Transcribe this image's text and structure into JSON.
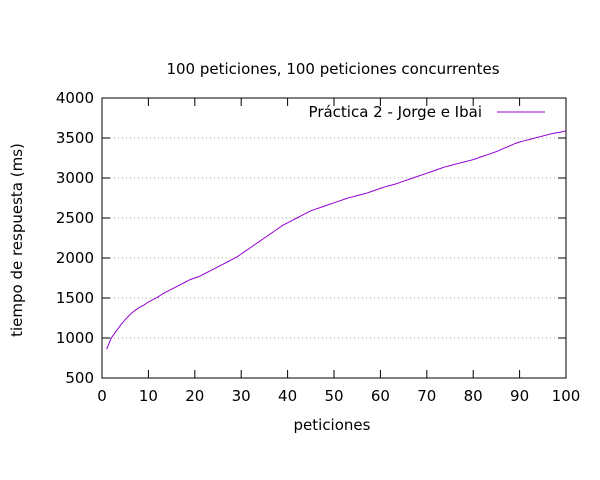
{
  "chart_data": {
    "type": "line",
    "title": "100 peticiones, 100 peticiones concurrentes",
    "xlabel": "peticiones",
    "ylabel": "tiempo de respuesta (ms)",
    "xlim": [
      0,
      100
    ],
    "ylim": [
      500,
      4000
    ],
    "xticks": [
      0,
      10,
      20,
      30,
      40,
      50,
      60,
      70,
      80,
      90,
      100
    ],
    "yticks": [
      500,
      1000,
      1500,
      2000,
      2500,
      3000,
      3500,
      4000
    ],
    "grid": "horizontal dotted",
    "legend_position": "top-right",
    "colors": {
      "series": "#9400d3",
      "grid": "#a0a0a0"
    },
    "series": [
      {
        "name": "Práctica 2 - Jorge e Ibai",
        "x": [
          1,
          2,
          3,
          4,
          5,
          6,
          7,
          8,
          9,
          10,
          11,
          12,
          13,
          14,
          15,
          16,
          17,
          18,
          19,
          20,
          21,
          22,
          23,
          24,
          25,
          26,
          27,
          28,
          29,
          30,
          31,
          32,
          33,
          34,
          35,
          36,
          37,
          38,
          39,
          40,
          41,
          42,
          43,
          44,
          45,
          46,
          47,
          48,
          49,
          50,
          51,
          52,
          53,
          54,
          55,
          56,
          57,
          58,
          59,
          60,
          61,
          62,
          63,
          64,
          65,
          66,
          67,
          68,
          69,
          70,
          71,
          72,
          73,
          74,
          75,
          76,
          77,
          78,
          79,
          80,
          81,
          82,
          83,
          84,
          85,
          86,
          87,
          88,
          89,
          90,
          91,
          92,
          93,
          94,
          95,
          96,
          97,
          98,
          99,
          100
        ],
        "y": [
          860,
          1000,
          1080,
          1160,
          1230,
          1290,
          1340,
          1380,
          1410,
          1450,
          1480,
          1510,
          1550,
          1580,
          1610,
          1640,
          1670,
          1700,
          1730,
          1750,
          1770,
          1800,
          1830,
          1860,
          1890,
          1920,
          1950,
          1980,
          2010,
          2050,
          2090,
          2130,
          2170,
          2210,
          2250,
          2290,
          2330,
          2370,
          2410,
          2440,
          2470,
          2500,
          2530,
          2560,
          2590,
          2610,
          2630,
          2650,
          2670,
          2690,
          2710,
          2730,
          2750,
          2765,
          2780,
          2795,
          2810,
          2830,
          2850,
          2870,
          2890,
          2905,
          2920,
          2940,
          2960,
          2980,
          3000,
          3020,
          3040,
          3060,
          3080,
          3100,
          3120,
          3140,
          3155,
          3170,
          3185,
          3200,
          3215,
          3230,
          3250,
          3270,
          3290,
          3310,
          3330,
          3355,
          3380,
          3405,
          3430,
          3450,
          3465,
          3480,
          3495,
          3510,
          3525,
          3540,
          3555,
          3565,
          3575,
          3590
        ]
      }
    ]
  }
}
